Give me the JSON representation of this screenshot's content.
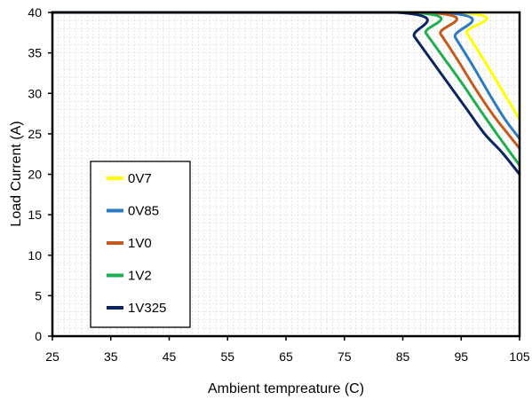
{
  "chart_data": {
    "type": "line",
    "title": "",
    "xlabel": "Ambient tempreature (C)",
    "ylabel": "Load Current (A)",
    "xlim": [
      25,
      105
    ],
    "ylim": [
      0,
      40
    ],
    "x_ticks": [
      "25",
      "35",
      "45",
      "55",
      "65",
      "75",
      "85",
      "95",
      "105"
    ],
    "y_ticks": [
      "0",
      "5",
      "10",
      "15",
      "20",
      "25",
      "30",
      "35",
      "40"
    ],
    "grid": true,
    "legend_position": "lower-left",
    "series": [
      {
        "name": "0V7",
        "color": "#ffff00",
        "points": [
          [
            25,
            40
          ],
          [
            93.7,
            40
          ],
          [
            96,
            37.4
          ],
          [
            99,
            34
          ],
          [
            102,
            30.4
          ],
          [
            105,
            26.8
          ]
        ]
      },
      {
        "name": "0V85",
        "color": "#2e7bc3",
        "points": [
          [
            25,
            40
          ],
          [
            91.3,
            40
          ],
          [
            94,
            36.9
          ],
          [
            97,
            33.4
          ],
          [
            100,
            29.7
          ],
          [
            102.5,
            26.8
          ],
          [
            105,
            24.4
          ]
        ]
      },
      {
        "name": "1V0",
        "color": "#c55a1c",
        "points": [
          [
            25,
            40
          ],
          [
            88.8,
            40
          ],
          [
            91.5,
            37.3
          ],
          [
            94.5,
            34
          ],
          [
            97.5,
            30.5
          ],
          [
            100.5,
            27.3
          ],
          [
            103,
            25
          ],
          [
            105,
            23.2
          ]
        ]
      },
      {
        "name": "1V2",
        "color": "#1fae50",
        "points": [
          [
            25,
            40
          ],
          [
            86.3,
            40
          ],
          [
            89,
            37.4
          ],
          [
            92,
            34.4
          ],
          [
            95,
            31.4
          ],
          [
            98,
            28.2
          ],
          [
            101,
            25.1
          ],
          [
            103,
            23.1
          ],
          [
            105,
            21.1
          ]
        ]
      },
      {
        "name": "1V325",
        "color": "#0a2562",
        "points": [
          [
            25,
            40
          ],
          [
            84,
            40
          ],
          [
            87,
            37
          ],
          [
            90,
            34
          ],
          [
            93,
            31
          ],
          [
            96,
            28
          ],
          [
            99,
            25
          ],
          [
            102,
            22.7
          ],
          [
            105,
            20
          ]
        ]
      }
    ]
  }
}
